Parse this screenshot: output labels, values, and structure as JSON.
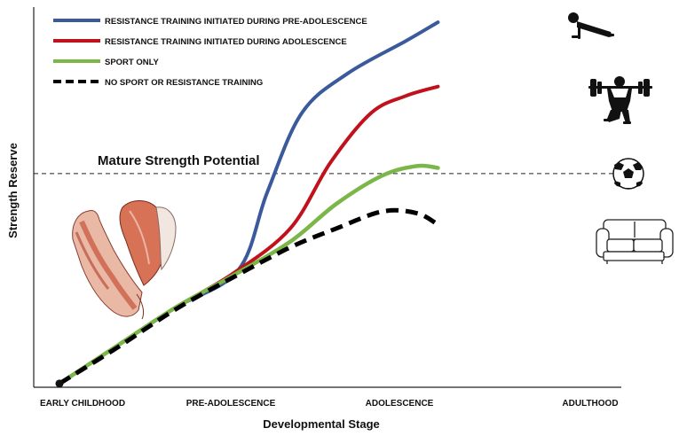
{
  "chart_data": {
    "type": "line",
    "title": "",
    "xlabel": "Developmental Stage",
    "ylabel": "Strength Reserve",
    "x_categories": [
      "EARLY CHILDHOOD",
      "PRE-ADOLESCENCE",
      "ADOLESCENCE",
      "ADULTHOOD"
    ],
    "xlim": [
      0,
      3.4
    ],
    "ylim": [
      0,
      10
    ],
    "reference_line": {
      "label": "Mature Strength Potential",
      "y": 5.6
    },
    "series": [
      {
        "name": "RESISTANCE TRAINING INITIATED DURING PRE-ADOLESCENCE",
        "color": "#3a5a9c",
        "style": "solid",
        "x": [
          0,
          0.5,
          1.0,
          1.55,
          1.8,
          2.1,
          2.5,
          3.0,
          3.28
        ],
        "y": [
          0.05,
          1.05,
          2.05,
          3.05,
          5.1,
          7.2,
          8.25,
          9.1,
          9.6
        ]
      },
      {
        "name": "RESISTANCE TRAINING INITIATED DURING ADOLESCENCE",
        "color": "#c0121c",
        "style": "solid",
        "x": [
          0,
          0.5,
          1.0,
          1.5,
          2.0,
          2.35,
          2.7,
          3.0,
          3.28
        ],
        "y": [
          0.05,
          1.05,
          2.05,
          2.95,
          4.15,
          5.9,
          7.2,
          7.65,
          7.9
        ]
      },
      {
        "name": "SPORT ONLY",
        "color": "#7ab648",
        "style": "solid",
        "x": [
          0,
          0.5,
          1.0,
          1.5,
          2.0,
          2.4,
          2.8,
          3.1,
          3.28
        ],
        "y": [
          0.05,
          1.05,
          2.05,
          2.9,
          3.8,
          4.8,
          5.55,
          5.8,
          5.75
        ]
      },
      {
        "name": "NO SPORT OR RESISTANCE TRAINING",
        "color": "#000000",
        "style": "dashed",
        "x": [
          0,
          0.5,
          1.0,
          1.5,
          2.0,
          2.4,
          2.8,
          3.1,
          3.28
        ],
        "y": [
          0.05,
          1.0,
          2.0,
          2.85,
          3.65,
          4.15,
          4.6,
          4.55,
          4.25
        ]
      }
    ],
    "legend_position": "top-left",
    "grid": false,
    "icons": [
      "push-up-figure-icon",
      "weightlifter-icon",
      "soccer-ball-icon",
      "sofa-icon",
      "arm-muscle-anatomy-icon"
    ]
  }
}
